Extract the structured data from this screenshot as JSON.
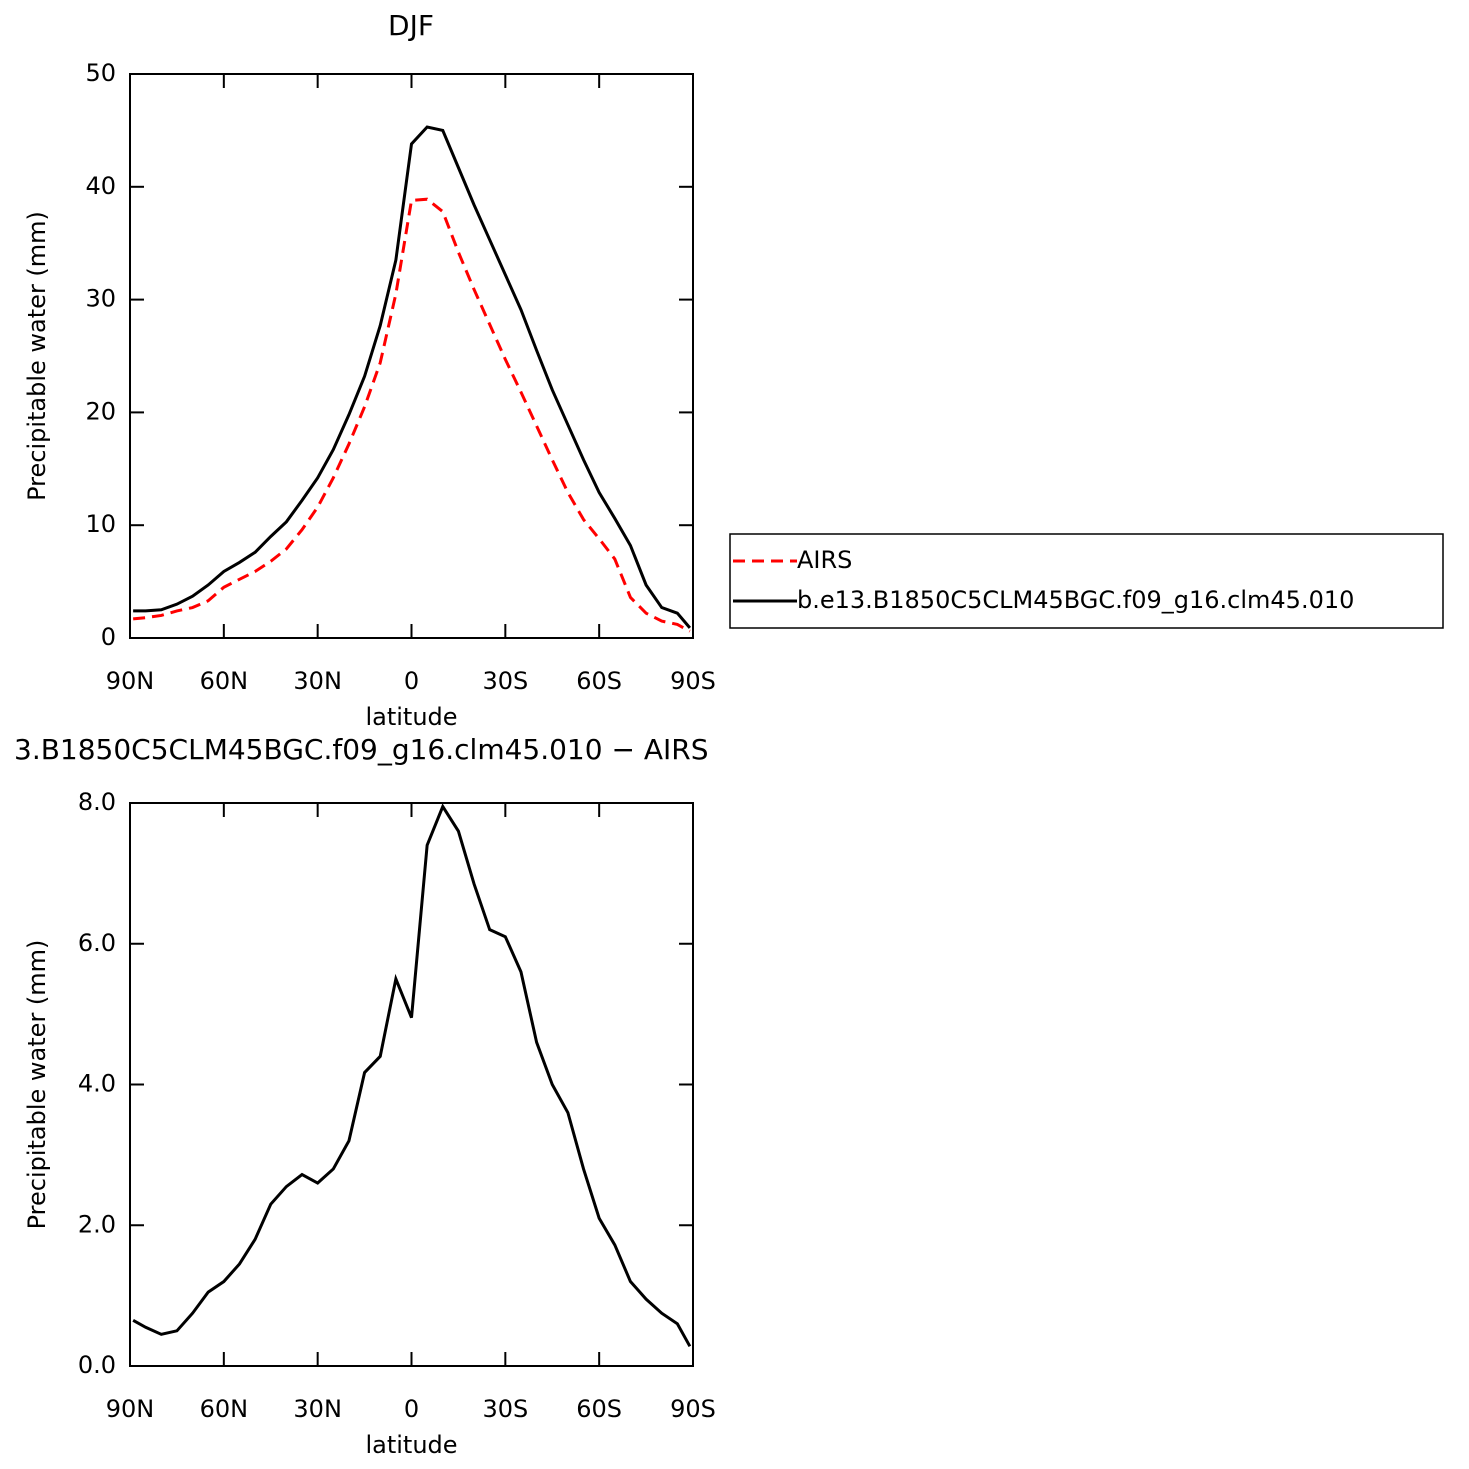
{
  "chart_data": [
    {
      "type": "line",
      "title": "DJF",
      "xlabel": "latitude",
      "ylabel": "Precipitable water (mm)",
      "x": [
        89,
        85,
        80,
        75,
        70,
        65,
        60,
        55,
        50,
        45,
        40,
        35,
        30,
        25,
        20,
        15,
        10,
        5,
        0,
        -5,
        -10,
        -15,
        -20,
        -25,
        -30,
        -35,
        -40,
        -45,
        -50,
        -55,
        -60,
        -65,
        -70,
        -75,
        -80,
        -85,
        -89
      ],
      "series": [
        {
          "name": "AIRS",
          "color": "#ff0000",
          "dash": true,
          "values": [
            1.7,
            1.8,
            2.0,
            2.4,
            2.7,
            3.3,
            4.5,
            5.2,
            5.9,
            6.8,
            7.9,
            9.6,
            11.6,
            14.2,
            17.2,
            20.5,
            24.4,
            30.5,
            38.8,
            38.9,
            37.8,
            34.2,
            30.9,
            27.8,
            24.7,
            21.8,
            18.8,
            15.8,
            12.9,
            10.5,
            8.8,
            7.0,
            3.6,
            2.2,
            1.5,
            1.2,
            0.6
          ]
        },
        {
          "name": "b.e13.B1850C5CLM45BGC.f09_g16.clm45.010",
          "color": "#000000",
          "dash": false,
          "values": [
            2.4,
            2.4,
            2.5,
            3.0,
            3.7,
            4.7,
            5.9,
            6.7,
            7.6,
            9.0,
            10.3,
            12.2,
            14.2,
            16.7,
            19.8,
            23.2,
            27.7,
            33.5,
            43.8,
            45.3,
            45.0,
            41.7,
            38.4,
            35.3,
            32.2,
            29.1,
            25.5,
            22.0,
            18.9,
            15.8,
            12.9,
            10.6,
            8.2,
            4.7,
            2.7,
            2.2,
            0.9
          ]
        }
      ],
      "xlim": [
        90,
        -90
      ],
      "xticks": [
        {
          "value": 90,
          "label": "90N"
        },
        {
          "value": 60,
          "label": "60N"
        },
        {
          "value": 30,
          "label": "30N"
        },
        0,
        {
          "value": -30,
          "label": "30S"
        },
        {
          "value": -60,
          "label": "60S"
        },
        {
          "value": -90,
          "label": "90S"
        }
      ],
      "ylim": [
        0,
        50
      ],
      "yticks": [
        0,
        10,
        20,
        30,
        40,
        50
      ],
      "legend": "outside-right"
    },
    {
      "type": "line",
      "title": "3.B1850C5CLM45BGC.f09_g16.clm45.010 − AIRS",
      "xlabel": "latitude",
      "ylabel": "Precipitable water (mm)",
      "x": [
        89,
        85,
        80,
        75,
        70,
        65,
        60,
        55,
        50,
        45,
        40,
        35,
        30,
        25,
        20,
        15,
        10,
        5,
        0,
        -5,
        -10,
        -15,
        -20,
        -25,
        -30,
        -35,
        -40,
        -45,
        -50,
        -55,
        -60,
        -65,
        -70,
        -75,
        -80,
        -85,
        -89
      ],
      "series": [
        {
          "color": "#000000",
          "dash": false,
          "values": [
            0.65,
            0.55,
            0.45,
            0.5,
            0.75,
            1.05,
            1.2,
            1.45,
            1.8,
            2.3,
            2.55,
            2.72,
            2.6,
            2.8,
            3.2,
            4.17,
            4.4,
            5.5,
            4.95,
            7.4,
            7.95,
            7.6,
            6.85,
            6.2,
            6.1,
            5.6,
            4.6,
            4.0,
            3.6,
            2.8,
            2.1,
            1.72,
            1.2,
            0.95,
            0.75,
            0.6,
            0.28
          ]
        }
      ],
      "xlim": [
        90,
        -90
      ],
      "xticks": [
        {
          "value": 90,
          "label": "90N"
        },
        {
          "value": 60,
          "label": "60N"
        },
        {
          "value": 30,
          "label": "30N"
        },
        0,
        {
          "value": -30,
          "label": "30S"
        },
        {
          "value": -60,
          "label": "60S"
        },
        {
          "value": -90,
          "label": "90S"
        }
      ],
      "ylim": [
        0,
        8
      ],
      "yticks": [
        {
          "value": 0,
          "label": "0.0"
        },
        {
          "value": 2,
          "label": "2.0"
        },
        {
          "value": 4,
          "label": "4.0"
        },
        {
          "value": 6,
          "label": "6.0"
        },
        {
          "value": 8,
          "label": "8.0"
        }
      ]
    }
  ]
}
